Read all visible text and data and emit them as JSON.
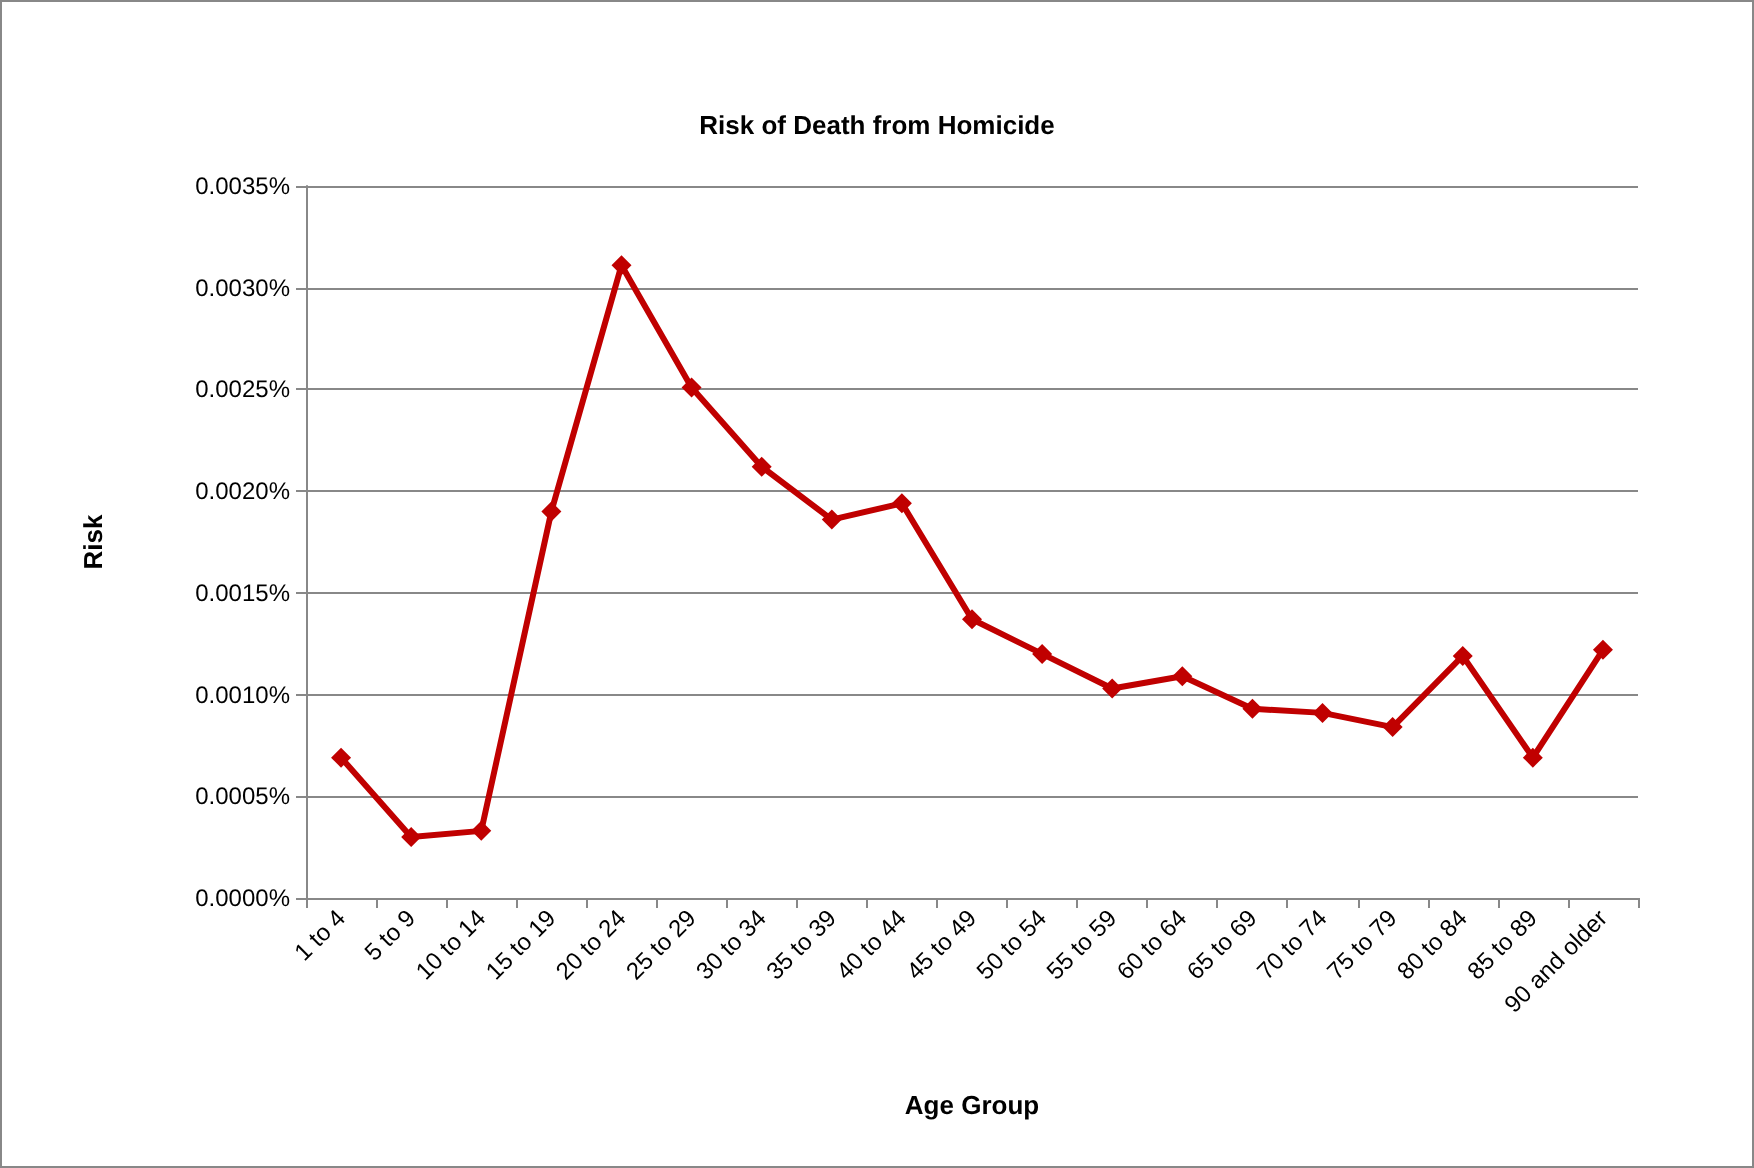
{
  "chart_data": {
    "type": "line",
    "title": "Risk of Death from Homicide",
    "xlabel": "Age Group",
    "ylabel": "Risk",
    "categories": [
      "1 to 4",
      "5 to 9",
      "10 to 14",
      "15 to 19",
      "20 to 24",
      "25 to 29",
      "30 to 34",
      "35 to 39",
      "40 to 44",
      "45 to 49",
      "50 to 54",
      "55 to 59",
      "60 to 64",
      "65 to 69",
      "70 to 74",
      "75 to 79",
      "80 to 84",
      "85 to 89",
      "90 and older"
    ],
    "series": [
      {
        "color": "#c00000",
        "values": [
          0.00069,
          0.0003,
          0.00033,
          0.0019,
          0.00311,
          0.00251,
          0.00212,
          0.00186,
          0.00194,
          0.00137,
          0.0012,
          0.00103,
          0.00109,
          0.00093,
          0.00091,
          0.00084,
          0.00119,
          0.00069,
          0.00122
        ]
      }
    ],
    "ylim": [
      0,
      0.0035
    ],
    "yticks": [
      {
        "value": 0,
        "label": "0.0000%"
      },
      {
        "value": 0.0005,
        "label": "0.0005%"
      },
      {
        "value": 0.001,
        "label": "0.0010%"
      },
      {
        "value": 0.0015,
        "label": "0.0015%"
      },
      {
        "value": 0.002,
        "label": "0.0020%"
      },
      {
        "value": 0.0025,
        "label": "0.0025%"
      },
      {
        "value": 0.003,
        "label": "0.0030%"
      },
      {
        "value": 0.0035,
        "label": "0.0035%"
      }
    ],
    "grid": "y",
    "marker": "diamond",
    "line_style": "solid"
  }
}
